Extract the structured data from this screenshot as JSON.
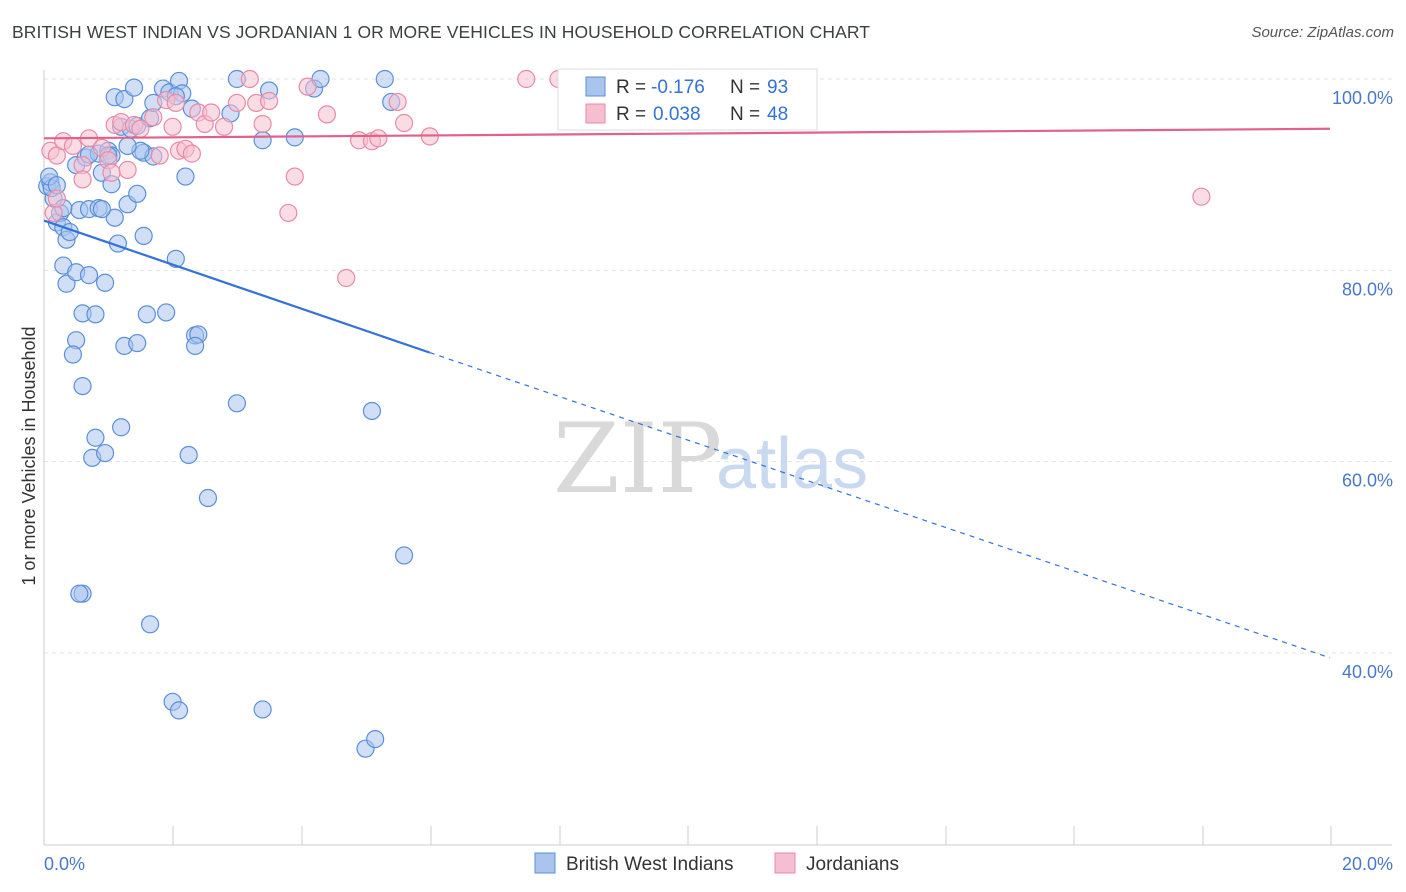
{
  "title": "BRITISH WEST INDIAN VS JORDANIAN 1 OR MORE VEHICLES IN HOUSEHOLD CORRELATION CHART",
  "source": "Source: ZipAtlas.com",
  "watermark": {
    "zip": "ZIP",
    "atlas": "atlas"
  },
  "colors": {
    "blue_fill": "#a9c5ee",
    "blue_stroke": "#5b8fd9",
    "blue_line": "#3372d6",
    "pink_fill": "#f6bfd0",
    "pink_stroke": "#e88aa8",
    "pink_line": "#e0628b",
    "label_blue": "#4a78c8",
    "grid": "#e3e3e3"
  },
  "legend_top": [
    {
      "r_label": "R =",
      "r_value": "-0.176",
      "n_label": "N =",
      "n_value": "93",
      "color": "blue"
    },
    {
      "r_label": "R =",
      "r_value": "0.038",
      "n_label": "N =",
      "n_value": "48",
      "color": "pink"
    }
  ],
  "chart_data": {
    "type": "scatter",
    "xlabel": "",
    "ylabel": "1 or more Vehicles in Household",
    "xlim": [
      0,
      20
    ],
    "ylim": [
      20,
      101
    ],
    "x_tick_labels": [
      "0.0%",
      "20.0%"
    ],
    "y_ticks": [
      100,
      80,
      60,
      40
    ],
    "y_tick_labels": [
      "100.0%",
      "80.0%",
      "60.0%",
      "40.0%"
    ],
    "legend": [
      "British West Indians",
      "Jordanians"
    ],
    "series": [
      {
        "name": "British West Indians",
        "color": "blue",
        "trend": {
          "x0": 0,
          "y0": 85.2,
          "x1": 6.0,
          "y1": 71.4,
          "dash_to_x": 20,
          "dash_to_y": 39.5
        },
        "points": [
          [
            0.05,
            88.8
          ],
          [
            0.1,
            89.2
          ],
          [
            0.15,
            87.5
          ],
          [
            0.2,
            85.0
          ],
          [
            0.25,
            86.0
          ],
          [
            0.3,
            84.5
          ],
          [
            0.35,
            83.2
          ],
          [
            0.12,
            88.6
          ],
          [
            0.08,
            89.8
          ],
          [
            0.2,
            88.9
          ],
          [
            0.3,
            80.5
          ],
          [
            0.35,
            78.6
          ],
          [
            0.5,
            79.8
          ],
          [
            0.7,
            79.5
          ],
          [
            0.95,
            78.7
          ],
          [
            0.4,
            84.0
          ],
          [
            0.55,
            86.3
          ],
          [
            0.7,
            86.4
          ],
          [
            0.85,
            86.5
          ],
          [
            1.1,
            85.5
          ],
          [
            1.15,
            82.8
          ],
          [
            1.55,
            83.6
          ],
          [
            2.05,
            81.2
          ],
          [
            0.5,
            91.0
          ],
          [
            0.65,
            91.8
          ],
          [
            0.85,
            92.2
          ],
          [
            1.0,
            92.5
          ],
          [
            1.05,
            92.0
          ],
          [
            1.55,
            92.3
          ],
          [
            1.7,
            91.9
          ],
          [
            0.9,
            90.2
          ],
          [
            1.05,
            89.0
          ],
          [
            1.3,
            86.9
          ],
          [
            1.45,
            88.0
          ],
          [
            2.2,
            89.8
          ],
          [
            1.2,
            95.0
          ],
          [
            1.35,
            94.8
          ],
          [
            1.45,
            95.1
          ],
          [
            1.65,
            95.9
          ],
          [
            1.1,
            98.1
          ],
          [
            1.25,
            97.9
          ],
          [
            1.4,
            99.1
          ],
          [
            1.7,
            97.5
          ],
          [
            1.85,
            99.0
          ],
          [
            1.95,
            98.6
          ],
          [
            2.1,
            99.8
          ],
          [
            2.15,
            98.5
          ],
          [
            2.3,
            96.9
          ],
          [
            2.9,
            96.4
          ],
          [
            3.0,
            100.0
          ],
          [
            3.4,
            93.6
          ],
          [
            3.5,
            98.8
          ],
          [
            3.9,
            93.9
          ],
          [
            4.2,
            99.0
          ],
          [
            4.3,
            100.0
          ],
          [
            5.3,
            100.0
          ],
          [
            5.4,
            97.6
          ],
          [
            0.6,
            75.5
          ],
          [
            0.8,
            75.4
          ],
          [
            1.25,
            72.1
          ],
          [
            1.45,
            72.4
          ],
          [
            1.6,
            75.4
          ],
          [
            1.9,
            75.6
          ],
          [
            2.35,
            73.2
          ],
          [
            2.4,
            73.3
          ],
          [
            2.35,
            72.1
          ],
          [
            0.5,
            72.7
          ],
          [
            0.45,
            71.2
          ],
          [
            0.6,
            67.9
          ],
          [
            3.0,
            66.1
          ],
          [
            5.1,
            65.3
          ],
          [
            1.2,
            63.6
          ],
          [
            0.8,
            62.5
          ],
          [
            0.75,
            60.4
          ],
          [
            0.95,
            60.9
          ],
          [
            2.25,
            60.7
          ],
          [
            2.55,
            56.2
          ],
          [
            5.6,
            50.2
          ],
          [
            0.6,
            46.2
          ],
          [
            0.55,
            46.2
          ],
          [
            1.65,
            43.0
          ],
          [
            2.0,
            34.9
          ],
          [
            2.1,
            34.0
          ],
          [
            3.4,
            34.1
          ],
          [
            5.0,
            30.0
          ],
          [
            5.15,
            31.0
          ],
          [
            1.0,
            92.0
          ],
          [
            1.5,
            92.5
          ],
          [
            0.3,
            86.5
          ],
          [
            0.9,
            86.4
          ],
          [
            0.7,
            92.1
          ],
          [
            1.3,
            93.0
          ],
          [
            2.05,
            98.2
          ]
        ]
      },
      {
        "name": "Jordanians",
        "color": "pink",
        "trend": {
          "x0": 0,
          "y0": 93.8,
          "x1": 20,
          "y1": 94.8
        },
        "points": [
          [
            0.1,
            92.5
          ],
          [
            0.2,
            92.0
          ],
          [
            0.3,
            93.5
          ],
          [
            0.45,
            93.0
          ],
          [
            0.6,
            91.0
          ],
          [
            0.7,
            93.8
          ],
          [
            0.9,
            92.8
          ],
          [
            1.0,
            91.5
          ],
          [
            1.1,
            95.2
          ],
          [
            1.3,
            90.5
          ],
          [
            0.15,
            86.0
          ],
          [
            0.2,
            87.5
          ],
          [
            0.6,
            89.5
          ],
          [
            1.05,
            90.2
          ],
          [
            1.2,
            95.5
          ],
          [
            1.4,
            95.2
          ],
          [
            1.5,
            94.8
          ],
          [
            1.7,
            96.0
          ],
          [
            1.8,
            92.0
          ],
          [
            1.9,
            97.8
          ],
          [
            2.0,
            95.0
          ],
          [
            2.05,
            97.5
          ],
          [
            2.1,
            92.5
          ],
          [
            2.2,
            92.7
          ],
          [
            2.3,
            92.2
          ],
          [
            2.4,
            96.5
          ],
          [
            2.5,
            95.3
          ],
          [
            2.6,
            96.5
          ],
          [
            2.8,
            95.0
          ],
          [
            3.0,
            97.5
          ],
          [
            3.2,
            100.0
          ],
          [
            3.3,
            97.5
          ],
          [
            3.4,
            95.3
          ],
          [
            3.5,
            97.7
          ],
          [
            3.8,
            86.0
          ],
          [
            3.9,
            89.8
          ],
          [
            4.1,
            99.2
          ],
          [
            4.4,
            96.3
          ],
          [
            4.7,
            79.2
          ],
          [
            4.9,
            93.6
          ],
          [
            5.1,
            93.5
          ],
          [
            5.2,
            93.8
          ],
          [
            5.5,
            97.6
          ],
          [
            5.6,
            95.4
          ],
          [
            6.0,
            94.0
          ],
          [
            7.5,
            100.0
          ],
          [
            8.0,
            100.0
          ],
          [
            18.0,
            87.7
          ]
        ]
      }
    ]
  }
}
